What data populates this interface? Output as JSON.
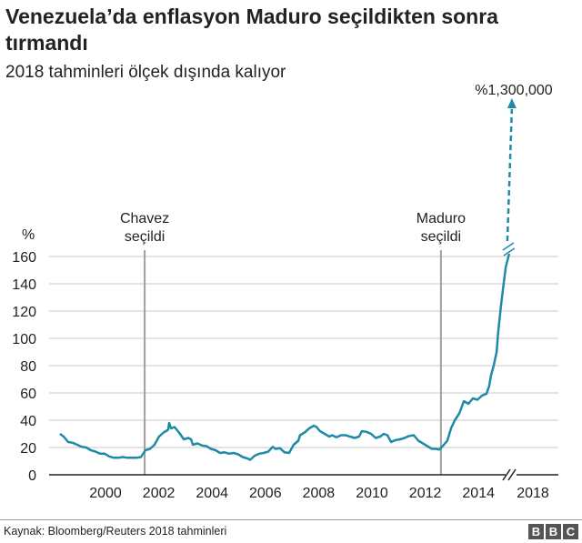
{
  "chart_data": {
    "type": "line",
    "title": "Venezuela’da enflasyon Maduro seçildikten sonra tırmandı",
    "subtitle": "2018 tahminleri ölçek dışında kalıyor",
    "ylabel": "%",
    "ylim": [
      0,
      160
    ],
    "yticks": [
      0,
      20,
      40,
      60,
      80,
      100,
      120,
      140,
      160
    ],
    "xticks": [
      "2000",
      "2002",
      "2004",
      "2006",
      "2008",
      "2010",
      "2012",
      "2014",
      "2018"
    ],
    "xtick_years": [
      2000,
      2002,
      2004,
      2006,
      2008,
      2010,
      2012,
      2014
    ],
    "grid": true,
    "axis_break": true,
    "color": "#1f8aa6",
    "series": [
      {
        "x": [
          1998.29,
          1998.43,
          1998.6,
          1998.77,
          1998.94,
          1999.11,
          1999.28,
          1999.45,
          1999.62,
          1999.8,
          1999.97,
          2000.14,
          2000.31,
          2000.48,
          2000.65,
          2000.82,
          2000.99,
          2001.16,
          2001.33,
          2001.5,
          2001.67,
          2001.84,
          2002.01,
          2002.18,
          2002.35,
          2002.39,
          2002.46,
          2002.59,
          2002.76,
          2002.94,
          2003.11,
          2003.21,
          2003.28,
          2003.45,
          2003.62,
          2003.79,
          2003.96,
          2004.13,
          2004.3,
          2004.47,
          2004.64,
          2004.81,
          2004.98,
          2005.15,
          2005.32,
          2005.43,
          2005.6,
          2005.77,
          2005.94,
          2006.11,
          2006.28,
          2006.38,
          2006.55,
          2006.72,
          2006.89,
          2007.06,
          2007.24,
          2007.3,
          2007.47,
          2007.65,
          2007.82,
          2007.92,
          2008.05,
          2008.23,
          2008.4,
          2008.5,
          2008.67,
          2008.84,
          2009.01,
          2009.18,
          2009.35,
          2009.52,
          2009.62,
          2009.8,
          2009.97,
          2010.14,
          2010.31,
          2010.44,
          2010.58,
          2010.72,
          2010.89,
          2011.06,
          2011.23,
          2011.4,
          2011.57,
          2011.74,
          2011.91,
          2012.08,
          2012.25,
          2012.42,
          2012.53,
          2012.7,
          2012.83,
          2012.97,
          2013.11,
          2013.28,
          2013.45,
          2013.62,
          2013.79,
          2013.96,
          2014.13,
          2014.3,
          2014.4,
          2014.47,
          2014.57,
          2014.68,
          2014.74,
          2014.85,
          2014.91,
          2015.02,
          2015.15
        ],
        "values": [
          30,
          28,
          24,
          23.5,
          22,
          20.5,
          20,
          18,
          17,
          15.5,
          15.5,
          13.5,
          12.5,
          12.5,
          13,
          12.5,
          12.5,
          12.5,
          13,
          18,
          19,
          22,
          28,
          31,
          33,
          38,
          34,
          35,
          31,
          26,
          27,
          26,
          22,
          23,
          21.5,
          21,
          19,
          18,
          16,
          16.5,
          15.5,
          16,
          15,
          13,
          12,
          11,
          14,
          15.5,
          16,
          17,
          20.5,
          19,
          19.5,
          16.5,
          16,
          22,
          25,
          29,
          31,
          34,
          36,
          35,
          32,
          30,
          28,
          29,
          27.5,
          29,
          29,
          28,
          27,
          28,
          32,
          31.5,
          30,
          27,
          28,
          30,
          29,
          24,
          25.5,
          26,
          27,
          28.5,
          29,
          25,
          23,
          21,
          19,
          19,
          18.5,
          22,
          25,
          34,
          40,
          45,
          54,
          52,
          56,
          55,
          58,
          59.5,
          65,
          73,
          80,
          90,
          105,
          125,
          135,
          152,
          162
        ]
      }
    ],
    "projection": {
      "x": "2018",
      "value": 1300000,
      "label": "%1,300,000",
      "style": "dashed-arrow"
    },
    "annotations": [
      {
        "x": 2001.47,
        "label_lines": [
          "Chavez",
          "seçildi"
        ]
      },
      {
        "x": 2012.59,
        "label_lines": [
          "Maduro",
          "seçildi"
        ]
      }
    ]
  },
  "footer": {
    "source": "Kaynak: Bloomberg/Reuters 2018 tahminleri",
    "logo": [
      "B",
      "B",
      "C"
    ]
  }
}
